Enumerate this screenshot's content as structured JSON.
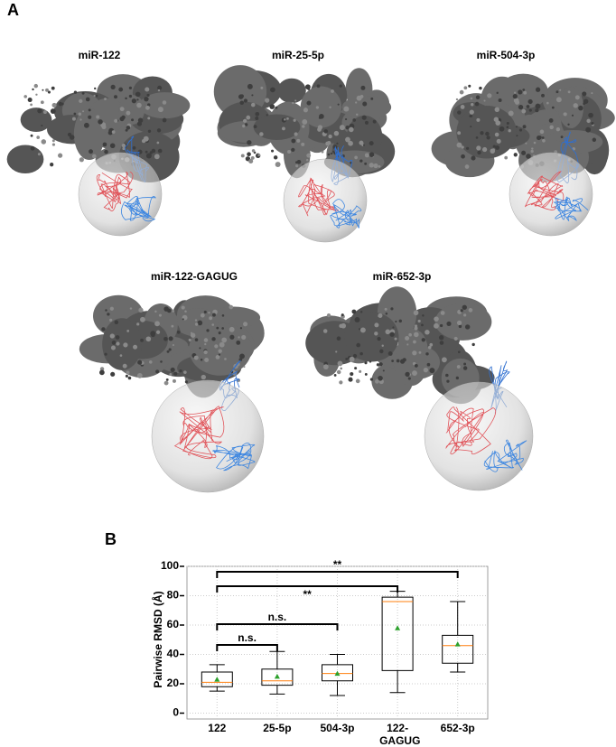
{
  "panel_a": {
    "label": "A",
    "structures": [
      {
        "title": "miR-122"
      },
      {
        "title": "miR-25-5p"
      },
      {
        "title": "miR-504-3p"
      },
      {
        "title": "miR-122-GAGUG"
      },
      {
        "title": "miR-652-3p"
      }
    ]
  },
  "chart_data": {
    "type": "box",
    "panel_label": "B",
    "ylabel": "Pairwise RMSD (Å)",
    "categories": [
      "122",
      "25-5p",
      "504-3p",
      "122-GAGUG",
      "652-3p"
    ],
    "whislo": [
      15,
      13,
      12,
      14,
      28
    ],
    "q1": [
      18,
      19,
      22,
      29,
      34
    ],
    "med": [
      21,
      22,
      27,
      76,
      46
    ],
    "q3": [
      28,
      30,
      33,
      79,
      53
    ],
    "whishi": [
      33,
      42,
      40,
      83,
      76
    ],
    "mean": [
      23,
      25,
      27,
      58,
      47
    ],
    "median_color": "#ff7f0e",
    "mean_color": "#2ca02c",
    "ylim": [
      -4,
      100
    ],
    "yticks": [
      0,
      20,
      40,
      60,
      80,
      100
    ],
    "grid": true,
    "brackets": [
      {
        "label": "**",
        "pair": [
          "122",
          "652-3p"
        ]
      },
      {
        "label": "**",
        "pair": [
          "122",
          "122-GAGUG"
        ]
      },
      {
        "label": "n.s.",
        "pair": [
          "122",
          "504-3p"
        ]
      },
      {
        "label": "n.s.",
        "pair": [
          "122",
          "25-5p"
        ]
      }
    ]
  }
}
